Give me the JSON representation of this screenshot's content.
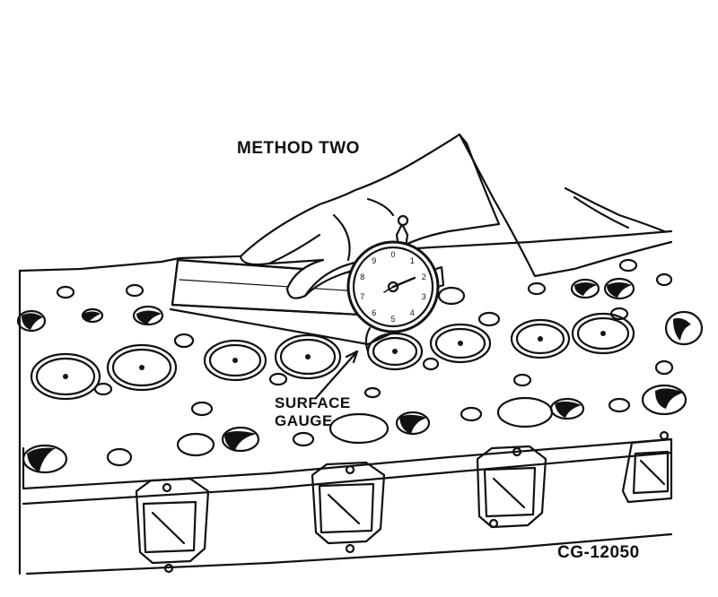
{
  "labels": {
    "method": "METHOD TWO",
    "gauge_line1": "SURFACE",
    "gauge_line2": "GAUGE",
    "figure_code": "CG-12050"
  },
  "dial_numbers": [
    "0",
    "1",
    "2",
    "3",
    "4",
    "5",
    "6",
    "7",
    "8",
    "9"
  ],
  "colors": {
    "ink": "#111111",
    "paper": "#ffffff"
  }
}
